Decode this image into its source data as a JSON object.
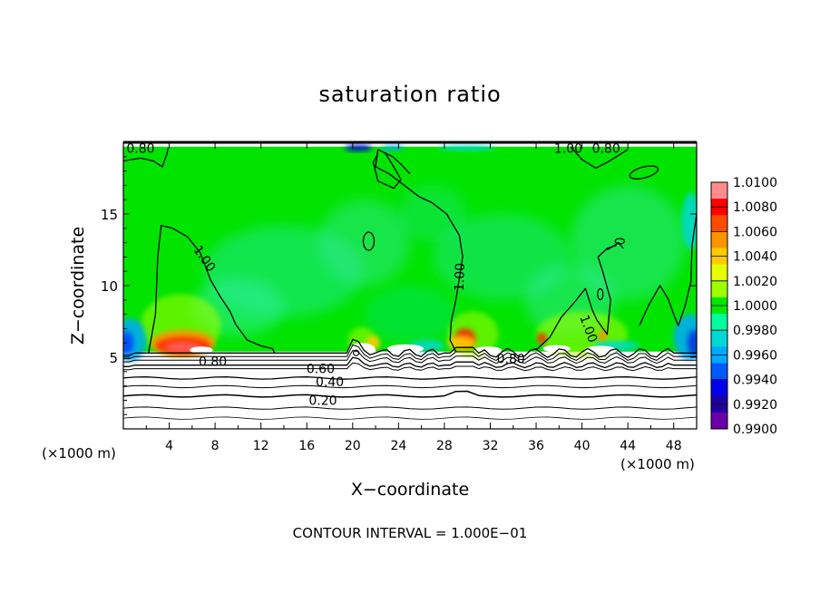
{
  "chart_data": {
    "type": "heatmap",
    "title": "saturation ratio",
    "xlabel": "X−coordinate",
    "ylabel": "Z−coordinate",
    "x_unit_left": "(×1000 m)",
    "x_unit_right": "(×1000 m)",
    "footer": "CONTOUR INTERVAL = 1.000E−01",
    "xlim": [
      0,
      50
    ],
    "ylim": [
      0,
      20
    ],
    "x_ticks": [
      4,
      8,
      12,
      16,
      20,
      24,
      28,
      32,
      36,
      40,
      44,
      48
    ],
    "x_tick_labels": [
      "4",
      "8",
      "12",
      "16",
      "20",
      "24",
      "28",
      "32",
      "36",
      "40",
      "44",
      "48"
    ],
    "y_ticks": [
      5,
      10,
      15
    ],
    "y_tick_labels": [
      "5",
      "10",
      "15"
    ],
    "colorbar": {
      "min": 0.99,
      "max": 1.01,
      "labels": [
        "1.0100",
        "1.0080",
        "1.0060",
        "1.0040",
        "1.0020",
        "1.0000",
        "0.9980",
        "0.9960",
        "0.9940",
        "0.9920",
        "0.9900"
      ],
      "colors": [
        "#ff8c8c",
        "#ff0000",
        "#ff4a00",
        "#ff9400",
        "#ffcc00",
        "#e6ff00",
        "#9dff00",
        "#00e800",
        "#00ff9e",
        "#00d8d8",
        "#00a8ff",
        "#0058ff",
        "#0000e8",
        "#2000a0",
        "#6a00a8"
      ]
    },
    "contour_labels": [
      {
        "text": "0.80",
        "x": 1.5,
        "y": 19.6
      },
      {
        "text": "1.00",
        "x": 38.8,
        "y": 19.6
      },
      {
        "text": "0.80",
        "x": 42.1,
        "y": 19.6
      },
      {
        "text": "1.00",
        "x": 7.1,
        "y": 11.9
      },
      {
        "text": "1.00",
        "x": 29.3,
        "y": 10.6
      },
      {
        "text": "1.00",
        "x": 40.6,
        "y": 7.0
      },
      {
        "text": "0.80",
        "x": 7.8,
        "y": 4.7
      },
      {
        "text": "0.80",
        "x": 33.8,
        "y": 4.9
      },
      {
        "text": "0.60",
        "x": 17.2,
        "y": 4.2
      },
      {
        "text": "0.40",
        "x": 18.0,
        "y": 3.3
      },
      {
        "text": "0.20",
        "x": 17.4,
        "y": 2.0
      }
    ],
    "regions": {
      "background_value": 1.0,
      "supersaturated_zones": [
        {
          "x": [
            2,
            8
          ],
          "peak": 1.008
        },
        {
          "x": [
            28.5,
            31
          ],
          "peak": 1.007
        },
        {
          "x": [
            35,
            42
          ],
          "peak": 1.004
        }
      ],
      "subsaturated_edges": [
        {
          "x": [
            0,
            1.5
          ],
          "low": 0.994
        },
        {
          "x": [
            48,
            50
          ],
          "low": 0.992
        }
      ],
      "saturated_layer_bottom_z": 5.3
    }
  }
}
